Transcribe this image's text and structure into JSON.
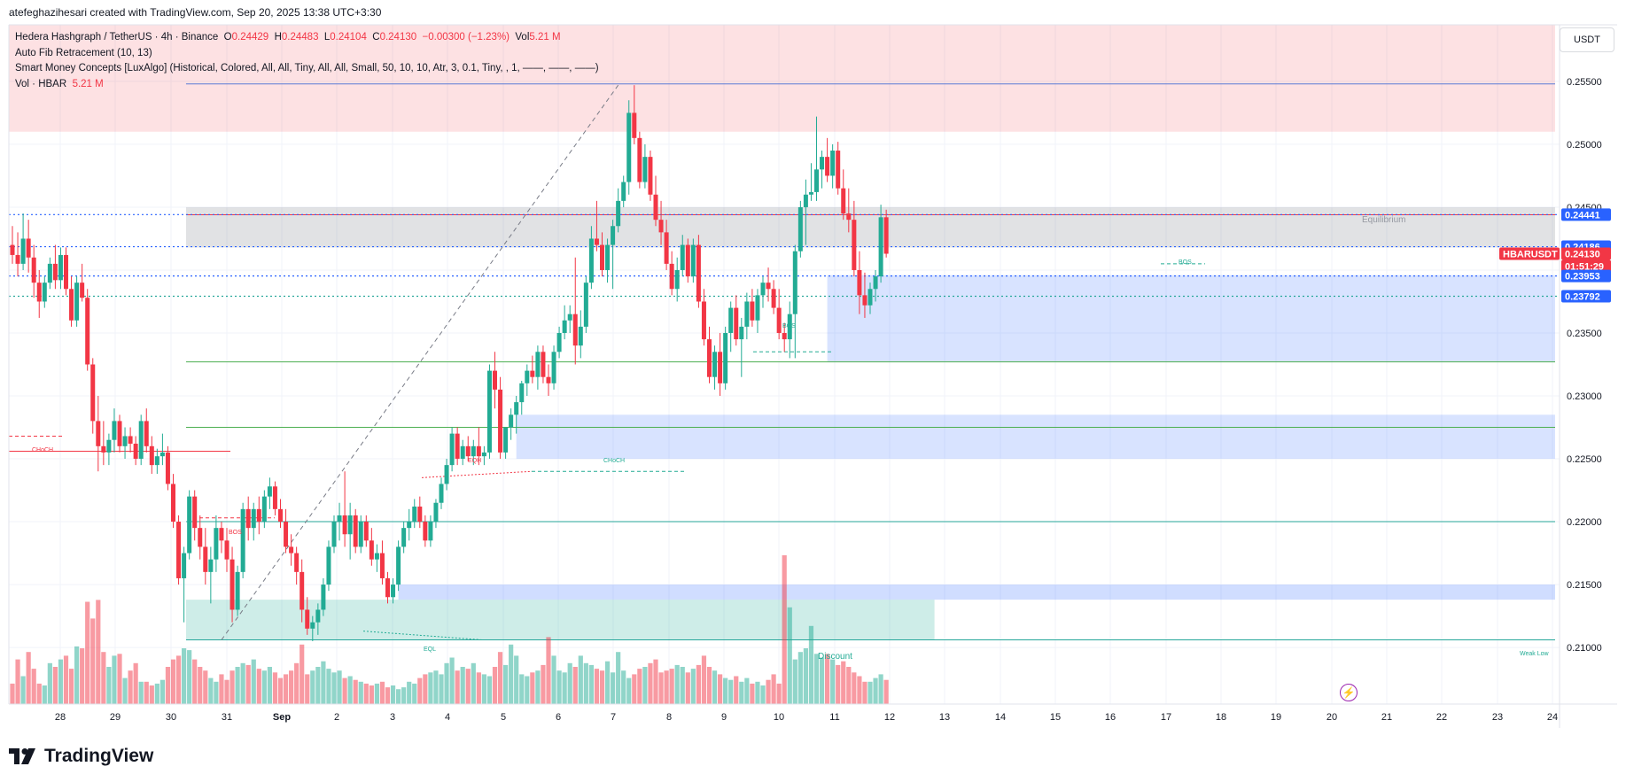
{
  "header": {
    "text": "atefeghazihesari created with TradingView.com, Sep 20, 2025 13:38 UTC+3:30"
  },
  "legend": {
    "symbol_line": "Hedera Hashgraph / TetherUS · 4h · Binance",
    "o_label": "O",
    "o_value": "0.24429",
    "h_label": "H",
    "h_value": "0.24483",
    "l_label": "L",
    "l_value": "0.24104",
    "c_label": "C",
    "c_value": "0.24130",
    "change": "−0.00300 (−1.23%)",
    "vol_label": "Vol",
    "vol_value": "5.21 M",
    "fib_line": "Auto Fib Retracement (10, 13)",
    "smc_line": "Smart Money Concepts [LuxAlgo] (Historical, Colored, All, All, Tiny, All, All, Small, 50, 10, 10, Atr, 3, 0.1, Tiny, , 1, ——, ——, ——)",
    "vol_ind_label": "Vol · HBAR",
    "vol_ind_value": "5.21 M"
  },
  "price_axis": {
    "currency": "USDT",
    "ticks": [
      "0.25500",
      "0.25000",
      "0.24500",
      "0.23500",
      "0.23000",
      "0.22500",
      "0.22000",
      "0.21500",
      "0.21000"
    ]
  },
  "price_tags": [
    {
      "text": "0.24441",
      "color": "#2962ff",
      "price": 0.24441
    },
    {
      "text": "0.24186",
      "color": "#2962ff",
      "price": 0.24186
    },
    {
      "text": "HBARUSDT",
      "color": "#f23645",
      "price": 0.2413
    },
    {
      "text": "0.24130",
      "color": "#f23645",
      "price": 0.2413
    },
    {
      "text": "01:51:29",
      "color": "#f23645",
      "price": 0.2413
    },
    {
      "text": "0.23953",
      "color": "#2962ff",
      "price": 0.23953
    },
    {
      "text": "0.23792",
      "color": "#2962ff",
      "price": 0.23792
    }
  ],
  "chart_annotations": {
    "equilibrium": "Equilibrium",
    "discount": "Discount",
    "weak_low": "Weak Low",
    "bos": "BOS",
    "choch": "CHoCH",
    "eqh": "EQH",
    "eql": "EQL"
  },
  "brand": {
    "name": "TradingView"
  },
  "colors": {
    "up": "#22ab94",
    "down": "#f23645",
    "blue": "#2962ff",
    "grid": "#f0f3fa"
  },
  "chart_data": {
    "type": "candlestick",
    "timeframe": "4h",
    "ylim": [
      0.2055,
      0.2595
    ],
    "x_axis_labels": [
      "28",
      "29",
      "30",
      "31",
      "Sep",
      "2",
      "3",
      "4",
      "5",
      "6",
      "7",
      "8",
      "9",
      "10",
      "11",
      "12",
      "13",
      "14",
      "15",
      "16",
      "17",
      "18",
      "19",
      "20",
      "21",
      "22",
      "23",
      "24"
    ],
    "anchors": {
      "swing_high": {
        "bar": 113,
        "price": 0.2547
      },
      "swing_low": {
        "bar": 39,
        "price": 0.2106
      }
    },
    "levels": [
      {
        "price": 0.2548,
        "type": "fib"
      },
      {
        "price": 0.2444,
        "type": "fib-top"
      },
      {
        "price": 0.2327,
        "type": "fib"
      },
      {
        "price": 0.2275,
        "type": "fib"
      },
      {
        "price": 0.22,
        "type": "fib"
      },
      {
        "price": 0.2106,
        "type": "fib-bottom"
      }
    ],
    "ohlc": [
      [
        0.242,
        0.2435,
        0.2405,
        0.2412
      ],
      [
        0.2412,
        0.243,
        0.2395,
        0.2405
      ],
      [
        0.2405,
        0.2445,
        0.24,
        0.2425
      ],
      [
        0.2425,
        0.244,
        0.2398,
        0.241
      ],
      [
        0.241,
        0.242,
        0.2378,
        0.239
      ],
      [
        0.239,
        0.24,
        0.2362,
        0.2375
      ],
      [
        0.2375,
        0.2395,
        0.237,
        0.239
      ],
      [
        0.239,
        0.241,
        0.2385,
        0.2405
      ],
      [
        0.2405,
        0.242,
        0.2385,
        0.2392
      ],
      [
        0.2392,
        0.2418,
        0.2385,
        0.2412
      ],
      [
        0.2412,
        0.2418,
        0.238,
        0.2385
      ],
      [
        0.2385,
        0.2395,
        0.2355,
        0.236
      ],
      [
        0.236,
        0.2395,
        0.2355,
        0.239
      ],
      [
        0.239,
        0.2405,
        0.2375,
        0.2378
      ],
      [
        0.2378,
        0.2385,
        0.232,
        0.2325
      ],
      [
        0.2325,
        0.233,
        0.227,
        0.228
      ],
      [
        0.228,
        0.23,
        0.224,
        0.226
      ],
      [
        0.226,
        0.228,
        0.2245,
        0.2255
      ],
      [
        0.2255,
        0.227,
        0.2245,
        0.2265
      ],
      [
        0.2265,
        0.229,
        0.2255,
        0.228
      ],
      [
        0.228,
        0.2285,
        0.2255,
        0.226
      ],
      [
        0.226,
        0.2275,
        0.225,
        0.2268
      ],
      [
        0.2268,
        0.2275,
        0.2255,
        0.2262
      ],
      [
        0.2262,
        0.2268,
        0.2245,
        0.225
      ],
      [
        0.225,
        0.2285,
        0.2245,
        0.228
      ],
      [
        0.228,
        0.229,
        0.2255,
        0.226
      ],
      [
        0.226,
        0.2268,
        0.2238,
        0.2245
      ],
      [
        0.2245,
        0.2258,
        0.2238,
        0.2252
      ],
      [
        0.2252,
        0.227,
        0.2245,
        0.2255
      ],
      [
        0.2255,
        0.226,
        0.2225,
        0.223
      ],
      [
        0.223,
        0.2238,
        0.2195,
        0.22
      ],
      [
        0.22,
        0.2205,
        0.215,
        0.2155
      ],
      [
        0.2155,
        0.218,
        0.212,
        0.2175
      ],
      [
        0.2175,
        0.2225,
        0.217,
        0.222
      ],
      [
        0.222,
        0.2225,
        0.2185,
        0.2195
      ],
      [
        0.2195,
        0.2205,
        0.217,
        0.218
      ],
      [
        0.218,
        0.2195,
        0.215,
        0.216
      ],
      [
        0.216,
        0.218,
        0.2135,
        0.217
      ],
      [
        0.217,
        0.2205,
        0.216,
        0.2195
      ],
      [
        0.2195,
        0.22,
        0.2175,
        0.2185
      ],
      [
        0.2185,
        0.2195,
        0.216,
        0.217
      ],
      [
        0.217,
        0.218,
        0.212,
        0.213
      ],
      [
        0.213,
        0.2165,
        0.2125,
        0.216
      ],
      [
        0.216,
        0.2215,
        0.2155,
        0.221
      ],
      [
        0.221,
        0.222,
        0.2185,
        0.2195
      ],
      [
        0.2195,
        0.2215,
        0.2185,
        0.221
      ],
      [
        0.221,
        0.222,
        0.219,
        0.22
      ],
      [
        0.22,
        0.2225,
        0.2195,
        0.222
      ],
      [
        0.222,
        0.2235,
        0.221,
        0.2228
      ],
      [
        0.2228,
        0.2232,
        0.2205,
        0.221
      ],
      [
        0.221,
        0.2218,
        0.2195,
        0.22
      ],
      [
        0.22,
        0.221,
        0.2175,
        0.218
      ],
      [
        0.218,
        0.219,
        0.2165,
        0.2175
      ],
      [
        0.2175,
        0.218,
        0.215,
        0.216
      ],
      [
        0.216,
        0.217,
        0.212,
        0.213
      ],
      [
        0.213,
        0.214,
        0.211,
        0.2115
      ],
      [
        0.2115,
        0.2125,
        0.2105,
        0.212
      ],
      [
        0.212,
        0.2135,
        0.211,
        0.213
      ],
      [
        0.213,
        0.2155,
        0.2125,
        0.215
      ],
      [
        0.215,
        0.2185,
        0.2145,
        0.218
      ],
      [
        0.218,
        0.2205,
        0.2175,
        0.22
      ],
      [
        0.22,
        0.2215,
        0.2185,
        0.2205
      ],
      [
        0.2205,
        0.224,
        0.218,
        0.219
      ],
      [
        0.219,
        0.2215,
        0.217,
        0.2205
      ],
      [
        0.2205,
        0.221,
        0.2175,
        0.218
      ],
      [
        0.218,
        0.2205,
        0.2175,
        0.22
      ],
      [
        0.22,
        0.2205,
        0.218,
        0.2185
      ],
      [
        0.2185,
        0.2195,
        0.2165,
        0.217
      ],
      [
        0.217,
        0.2182,
        0.216,
        0.2175
      ],
      [
        0.2175,
        0.2185,
        0.215,
        0.2155
      ],
      [
        0.2155,
        0.216,
        0.2135,
        0.214
      ],
      [
        0.214,
        0.2155,
        0.2135,
        0.215
      ],
      [
        0.215,
        0.2185,
        0.2145,
        0.218
      ],
      [
        0.218,
        0.22,
        0.2175,
        0.2195
      ],
      [
        0.2195,
        0.221,
        0.2185,
        0.22
      ],
      [
        0.22,
        0.2218,
        0.2195,
        0.2212
      ],
      [
        0.2212,
        0.222,
        0.2195,
        0.22
      ],
      [
        0.22,
        0.2205,
        0.218,
        0.2185
      ],
      [
        0.2185,
        0.2205,
        0.218,
        0.22
      ],
      [
        0.22,
        0.2218,
        0.2195,
        0.2215
      ],
      [
        0.2215,
        0.2235,
        0.221,
        0.223
      ],
      [
        0.223,
        0.225,
        0.2225,
        0.2245
      ],
      [
        0.2245,
        0.2275,
        0.224,
        0.227
      ],
      [
        0.227,
        0.2275,
        0.2245,
        0.225
      ],
      [
        0.225,
        0.2265,
        0.2245,
        0.226
      ],
      [
        0.226,
        0.2268,
        0.2248,
        0.2252
      ],
      [
        0.2252,
        0.2265,
        0.2245,
        0.226
      ],
      [
        0.226,
        0.2275,
        0.2245,
        0.2252
      ],
      [
        0.2252,
        0.226,
        0.2245,
        0.2255
      ],
      [
        0.2255,
        0.2325,
        0.225,
        0.232
      ],
      [
        0.232,
        0.2335,
        0.229,
        0.2305
      ],
      [
        0.2305,
        0.2315,
        0.225,
        0.2255
      ],
      [
        0.2255,
        0.227,
        0.225,
        0.2275
      ],
      [
        0.2275,
        0.229,
        0.2265,
        0.2285
      ],
      [
        0.2285,
        0.23,
        0.227,
        0.2295
      ],
      [
        0.2295,
        0.2312,
        0.2285,
        0.231
      ],
      [
        0.231,
        0.2325,
        0.23,
        0.232
      ],
      [
        0.232,
        0.2332,
        0.231,
        0.2315
      ],
      [
        0.2315,
        0.234,
        0.2305,
        0.2335
      ],
      [
        0.2335,
        0.234,
        0.231,
        0.2315
      ],
      [
        0.2315,
        0.2325,
        0.23,
        0.231
      ],
      [
        0.231,
        0.234,
        0.2305,
        0.2335
      ],
      [
        0.2335,
        0.2355,
        0.233,
        0.235
      ],
      [
        0.235,
        0.2372,
        0.2345,
        0.236
      ],
      [
        0.236,
        0.2372,
        0.235,
        0.2365
      ],
      [
        0.2365,
        0.241,
        0.2325,
        0.234
      ],
      [
        0.234,
        0.2368,
        0.233,
        0.2355
      ],
      [
        0.2355,
        0.2395,
        0.235,
        0.239
      ],
      [
        0.239,
        0.2435,
        0.2385,
        0.2425
      ],
      [
        0.2425,
        0.2455,
        0.2415,
        0.242
      ],
      [
        0.242,
        0.243,
        0.2395,
        0.24
      ],
      [
        0.24,
        0.2425,
        0.239,
        0.242
      ],
      [
        0.242,
        0.244,
        0.2385,
        0.2435
      ],
      [
        0.2435,
        0.2465,
        0.243,
        0.2455
      ],
      [
        0.2455,
        0.2475,
        0.245,
        0.247
      ],
      [
        0.247,
        0.2535,
        0.246,
        0.2525
      ],
      [
        0.2525,
        0.2547,
        0.25,
        0.2505
      ],
      [
        0.2505,
        0.251,
        0.2465,
        0.247
      ],
      [
        0.247,
        0.25,
        0.2465,
        0.249
      ],
      [
        0.249,
        0.2495,
        0.2455,
        0.246
      ],
      [
        0.246,
        0.2475,
        0.2435,
        0.244
      ],
      [
        0.244,
        0.2455,
        0.242,
        0.243
      ],
      [
        0.243,
        0.244,
        0.24,
        0.2405
      ],
      [
        0.2405,
        0.2415,
        0.238,
        0.2385
      ],
      [
        0.2385,
        0.241,
        0.2375,
        0.24
      ],
      [
        0.24,
        0.2428,
        0.2395,
        0.242
      ],
      [
        0.242,
        0.2425,
        0.239,
        0.2395
      ],
      [
        0.2395,
        0.2425,
        0.239,
        0.242
      ],
      [
        0.242,
        0.2428,
        0.237,
        0.2375
      ],
      [
        0.2375,
        0.2385,
        0.234,
        0.2345
      ],
      [
        0.2345,
        0.2355,
        0.231,
        0.2315
      ],
      [
        0.2315,
        0.234,
        0.2305,
        0.2335
      ],
      [
        0.2335,
        0.235,
        0.23,
        0.231
      ],
      [
        0.231,
        0.2355,
        0.2305,
        0.235
      ],
      [
        0.235,
        0.2375,
        0.2335,
        0.237
      ],
      [
        0.237,
        0.238,
        0.234,
        0.2345
      ],
      [
        0.2345,
        0.2362,
        0.2315,
        0.2355
      ],
      [
        0.2355,
        0.2382,
        0.2345,
        0.2375
      ],
      [
        0.2375,
        0.2385,
        0.2355,
        0.236
      ],
      [
        0.236,
        0.2385,
        0.235,
        0.238
      ],
      [
        0.238,
        0.2395,
        0.237,
        0.239
      ],
      [
        0.239,
        0.2402,
        0.2375,
        0.2385
      ],
      [
        0.2385,
        0.2392,
        0.2365,
        0.237
      ],
      [
        0.237,
        0.2385,
        0.2345,
        0.235
      ],
      [
        0.235,
        0.2358,
        0.2335,
        0.2345
      ],
      [
        0.2345,
        0.2375,
        0.233,
        0.2365
      ],
      [
        0.2365,
        0.242,
        0.233,
        0.2415
      ],
      [
        0.2415,
        0.2455,
        0.241,
        0.245
      ],
      [
        0.245,
        0.2472,
        0.242,
        0.246
      ],
      [
        0.246,
        0.2485,
        0.2455,
        0.2462
      ],
      [
        0.2462,
        0.2522,
        0.2455,
        0.248
      ],
      [
        0.248,
        0.2495,
        0.2465,
        0.249
      ],
      [
        0.249,
        0.2505,
        0.247,
        0.2475
      ],
      [
        0.2475,
        0.25,
        0.2465,
        0.2495
      ],
      [
        0.2495,
        0.2502,
        0.246,
        0.2465
      ],
      [
        0.2465,
        0.248,
        0.244,
        0.2445
      ],
      [
        0.2445,
        0.2465,
        0.243,
        0.244
      ],
      [
        0.244,
        0.2455,
        0.2395,
        0.24
      ],
      [
        0.24,
        0.2415,
        0.2365,
        0.238
      ],
      [
        0.238,
        0.2398,
        0.2362,
        0.2372
      ],
      [
        0.2372,
        0.239,
        0.2365,
        0.2385
      ],
      [
        0.2385,
        0.24,
        0.2375,
        0.2395
      ],
      [
        0.2395,
        0.2452,
        0.239,
        0.2442
      ],
      [
        0.2442,
        0.2448,
        0.241,
        0.2413
      ]
    ],
    "volume": [
      0.55,
      1.2,
      0.75,
      1.4,
      0.95,
      0.55,
      0.5,
      1.1,
      1.0,
      1.2,
      1.3,
      0.95,
      1.55,
      1.5,
      2.75,
      2.3,
      2.8,
      1.4,
      1.0,
      1.3,
      1.35,
      0.7,
      0.9,
      1.1,
      0.6,
      0.6,
      0.5,
      0.55,
      0.65,
      1.0,
      1.2,
      1.3,
      1.5,
      1.45,
      1.2,
      1.0,
      0.9,
      0.7,
      0.6,
      0.8,
      0.65,
      0.9,
      1.0,
      1.1,
      1.05,
      1.2,
      0.95,
      0.9,
      1.0,
      0.85,
      0.7,
      0.8,
      0.9,
      1.1,
      1.6,
      0.8,
      0.9,
      1.0,
      1.15,
      0.95,
      0.85,
      0.9,
      0.7,
      0.75,
      0.65,
      0.6,
      0.55,
      0.5,
      0.55,
      0.6,
      0.45,
      0.5,
      0.4,
      0.45,
      0.6,
      0.55,
      0.7,
      0.8,
      0.85,
      0.9,
      0.8,
      1.1,
      1.25,
      0.9,
      1.0,
      0.95,
      1.1,
      0.85,
      0.8,
      0.75,
      1.0,
      1.4,
      1.05,
      1.6,
      1.3,
      0.8,
      0.75,
      0.85,
      0.9,
      1.05,
      1.8,
      1.3,
      0.9,
      0.85,
      1.1,
      1.0,
      1.3,
      1.1,
      1.05,
      0.95,
      0.9,
      1.15,
      0.85,
      1.4,
      0.9,
      0.7,
      0.8,
      0.95,
      1.0,
      1.1,
      1.2,
      0.85,
      0.9,
      0.95,
      1.05,
      1.0,
      0.85,
      0.95,
      1.05,
      1.3,
      1.0,
      0.9,
      0.8,
      0.7,
      0.65,
      0.75,
      0.6,
      0.7,
      0.55,
      0.6,
      0.5,
      0.65,
      0.8,
      0.55,
      4.0,
      2.6,
      1.2,
      1.4,
      1.5,
      2.1,
      1.35,
      1.25,
      1.35,
      1.2,
      1.05,
      1.15,
      1.0,
      0.85,
      0.75,
      0.6,
      0.6,
      0.7,
      0.8,
      0.65
    ]
  }
}
